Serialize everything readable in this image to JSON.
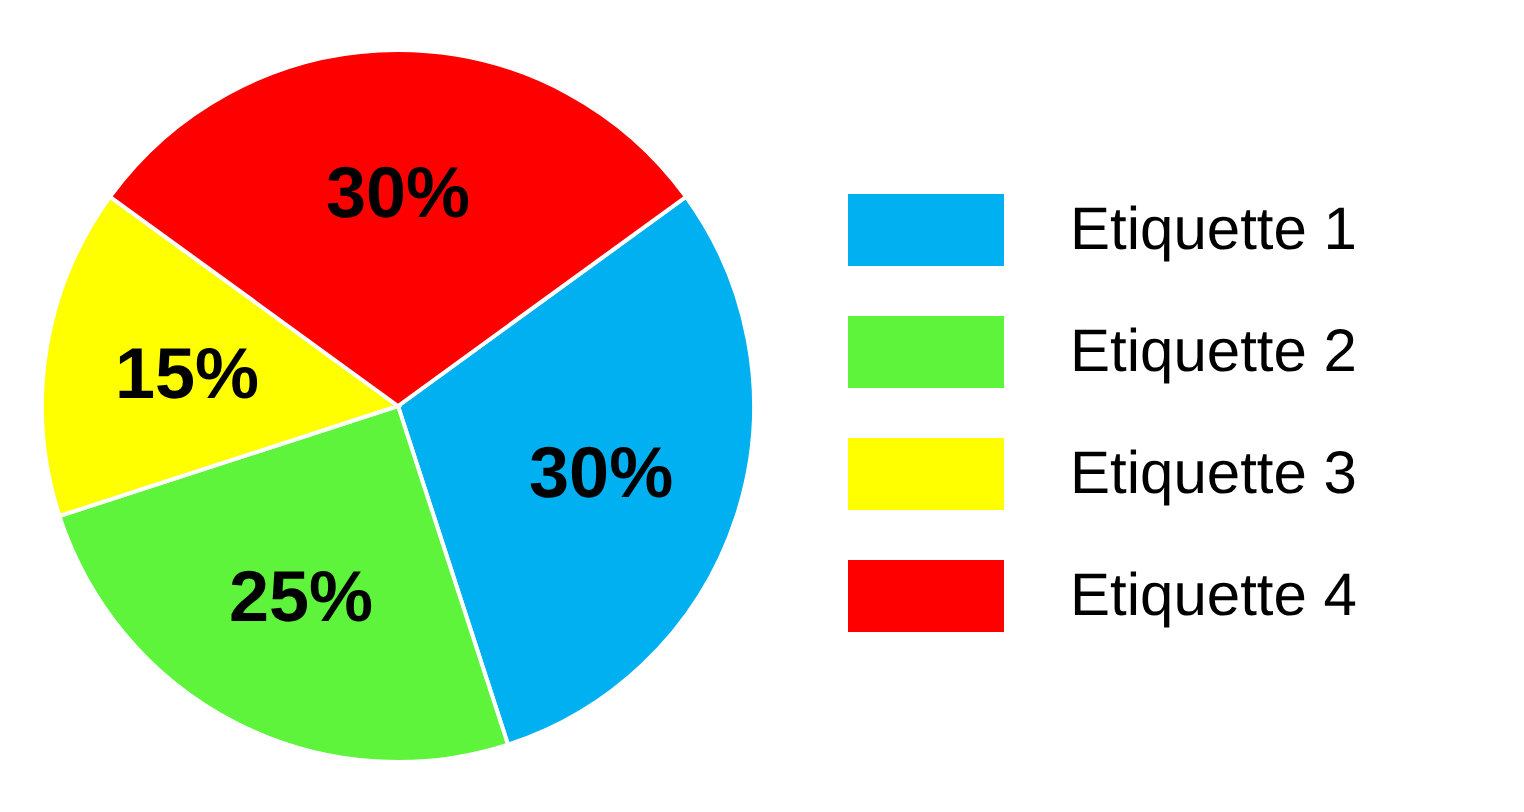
{
  "chart_data": {
    "type": "pie",
    "categories": [
      "Etiquette 1",
      "Etiquette 2",
      "Etiquette 3",
      "Etiquette 4"
    ],
    "values": [
      30,
      25,
      15,
      30
    ],
    "colors": [
      "#00b0f0",
      "#5ef43c",
      "#ffff00",
      "#ff0000"
    ],
    "value_labels": [
      "30%",
      "25%",
      "15%",
      "30%"
    ],
    "legend": "right"
  }
}
